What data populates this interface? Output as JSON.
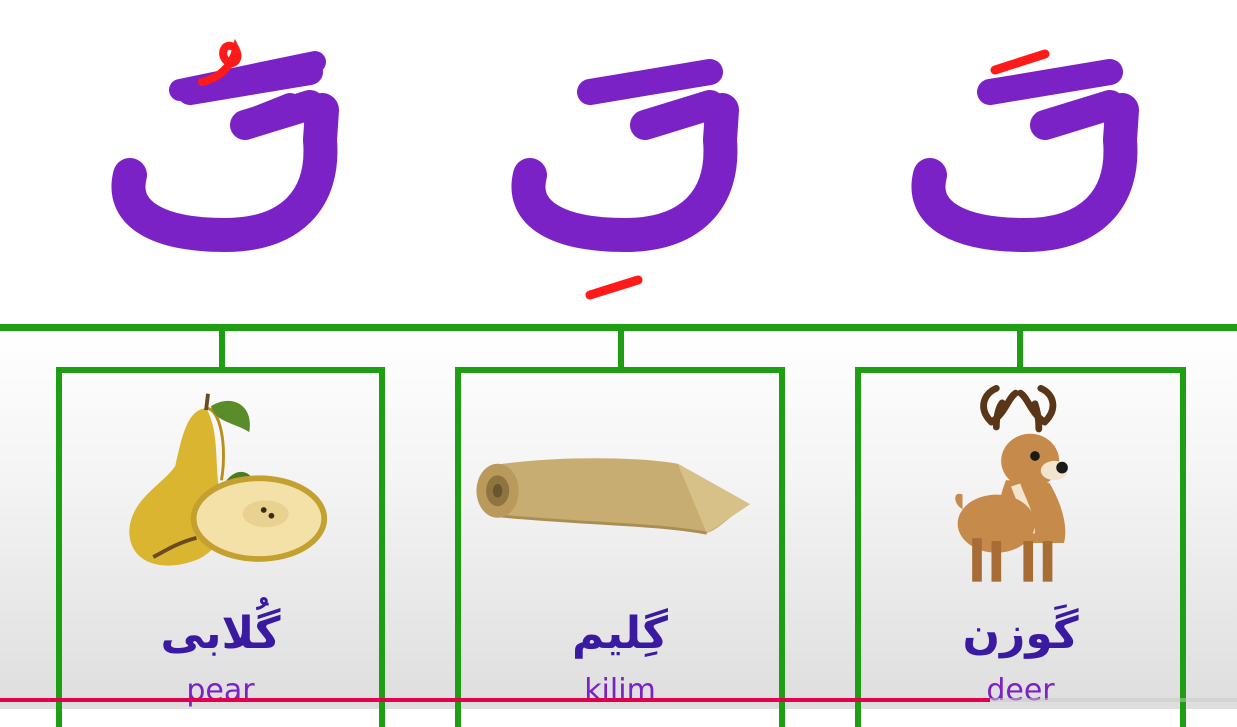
{
  "colors": {
    "letter": "#7b22c6",
    "diacritic": "#ff1a1a",
    "frame": "#1f9e14",
    "word_fa": "#3a1aa0",
    "word_en": "#7b22c6",
    "progress": "#e0004d"
  },
  "letters": [
    {
      "glyph": "گُ",
      "diacritic": "damma"
    },
    {
      "glyph": "گِ",
      "diacritic": "kasra"
    },
    {
      "glyph": "گَ",
      "diacritic": "fatha"
    }
  ],
  "cards": [
    {
      "word_fa": "گُلابی",
      "word_en": "pear",
      "image": "pear-icon"
    },
    {
      "word_fa": "گِلیم",
      "word_en": "kilim",
      "image": "kilim-roll-icon"
    },
    {
      "word_fa": "گَوزن",
      "word_en": "deer",
      "image": "deer-icon"
    }
  ],
  "video_progress": 0.8
}
